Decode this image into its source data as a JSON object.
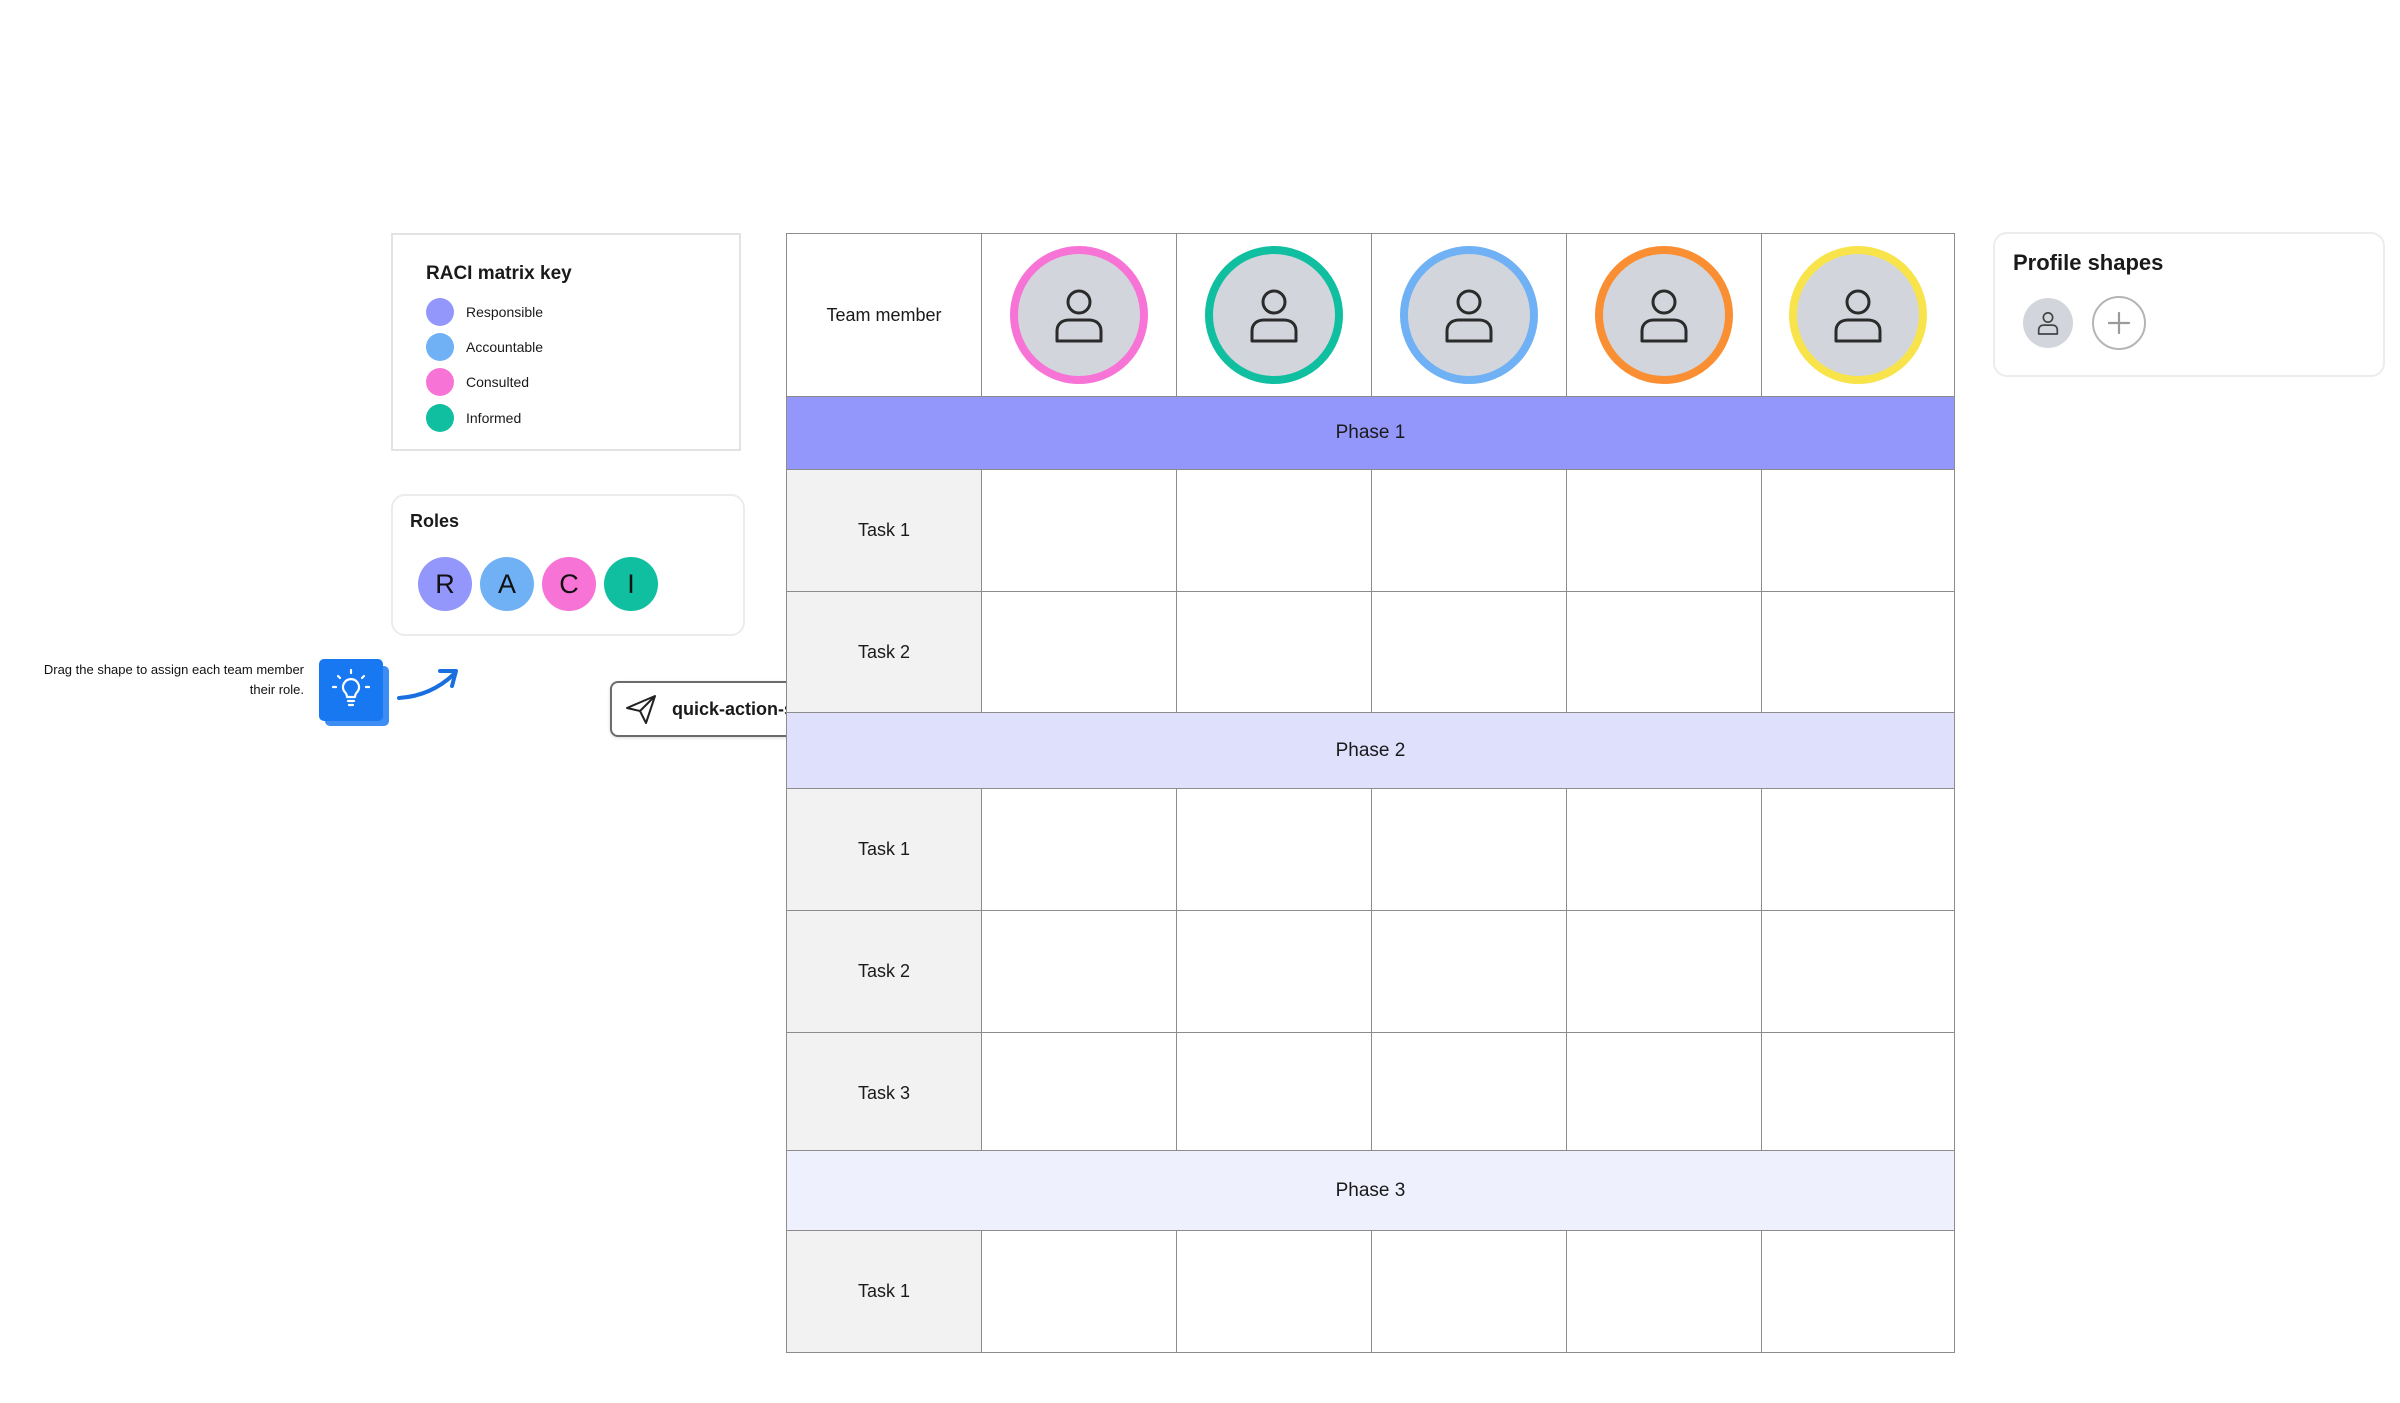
{
  "key": {
    "title": "RACI matrix key",
    "items": [
      {
        "label": "Responsible",
        "color": "#9396fb"
      },
      {
        "label": "Accountable",
        "color": "#6fb1f4"
      },
      {
        "label": "Consulted",
        "color": "#f774d6"
      },
      {
        "label": "Informed",
        "color": "#10bfa0"
      }
    ]
  },
  "roles": {
    "title": "Roles",
    "chips": [
      {
        "letter": "R",
        "color": "#9396fb"
      },
      {
        "letter": "A",
        "color": "#6fb1f4"
      },
      {
        "letter": "C",
        "color": "#f774d6"
      },
      {
        "letter": "I",
        "color": "#10bfa0"
      }
    ]
  },
  "hint": {
    "text": "Drag the shape to assign each team member their role.",
    "icon": "lightbulb-icon",
    "accent": "#1778f2"
  },
  "quick_action": {
    "label": "quick-action-share",
    "icon": "paper-plane-icon"
  },
  "matrix": {
    "header_label": "Team member",
    "member_colors": [
      "#f774d6",
      "#10bfa0",
      "#6fb1f4",
      "#fa8e33",
      "#f8e44a"
    ],
    "phases": [
      {
        "label": "Phase 1",
        "color": "#9396fb",
        "tasks": [
          "Task 1",
          "Task 2"
        ]
      },
      {
        "label": "Phase 2",
        "color": "#dfe0fc",
        "tasks": [
          "Task 1",
          "Task 2",
          "Task 3"
        ]
      },
      {
        "label": "Phase 3",
        "color": "#eff0fd",
        "tasks": [
          "Task 1"
        ]
      }
    ]
  },
  "profile_shapes": {
    "title": "Profile shapes",
    "avatar_icon": "user-icon",
    "add_icon": "plus-icon"
  }
}
